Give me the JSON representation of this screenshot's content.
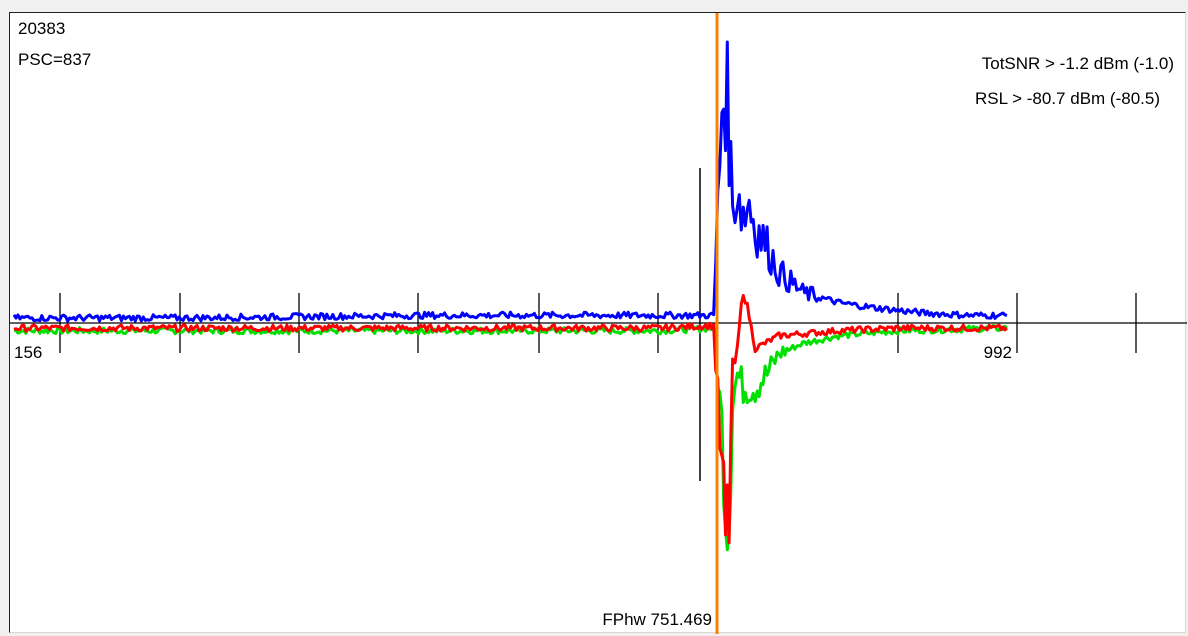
{
  "header": {
    "counter": "20383",
    "psc": "PSC=837"
  },
  "readouts": {
    "totsnr": "TotSNR > -1.2 dBm (-1.0)",
    "rsl": "RSL > -80.7 dBm (-80.5)"
  },
  "markers": {
    "fphw_label": "FPhw 751.469",
    "fphw_value": 751.469
  },
  "colors": {
    "series_blue": "#0000ff",
    "series_red": "#ff0000",
    "series_green": "#00e000",
    "marker_orange": "#ff8000",
    "axis": "#000000"
  },
  "chart_data": {
    "type": "line",
    "x_range": [
      156,
      992
    ],
    "tick_labels": [
      "156",
      "992"
    ],
    "marker_x": 751.469,
    "grid": false,
    "legend": "none",
    "series": [
      {
        "color": "blue",
        "x": [
          156,
          300,
          500,
          700,
          745,
          752,
          755,
          758,
          761,
          765,
          770,
          775,
          780,
          790,
          800,
          820,
          850,
          880,
          920,
          960,
          992
        ],
        "y": [
          0.02,
          0.02,
          0.03,
          0.03,
          0.03,
          0.85,
          0.95,
          0.75,
          0.45,
          0.55,
          0.42,
          0.48,
          0.38,
          0.3,
          0.2,
          0.12,
          0.08,
          0.06,
          0.04,
          0.03,
          0.03
        ]
      },
      {
        "color": "red",
        "x": [
          156,
          300,
          500,
          700,
          745,
          752,
          755,
          758,
          761,
          765,
          770,
          780,
          800,
          850,
          900,
          992
        ],
        "y": [
          -0.02,
          -0.02,
          -0.02,
          -0.02,
          -0.01,
          -0.6,
          -0.85,
          -0.75,
          -0.2,
          -0.1,
          0.15,
          -0.1,
          -0.05,
          -0.03,
          -0.02,
          -0.02
        ]
      },
      {
        "color": "green",
        "x": [
          156,
          300,
          500,
          700,
          745,
          752,
          755,
          758,
          761,
          765,
          770,
          780,
          790,
          800,
          820,
          850,
          900,
          992
        ],
        "y": [
          -0.03,
          -0.03,
          -0.03,
          -0.03,
          -0.02,
          -0.4,
          -0.7,
          -0.75,
          -0.3,
          -0.2,
          -0.25,
          -0.25,
          -0.2,
          -0.12,
          -0.08,
          -0.05,
          -0.03,
          -0.02
        ]
      }
    ]
  }
}
